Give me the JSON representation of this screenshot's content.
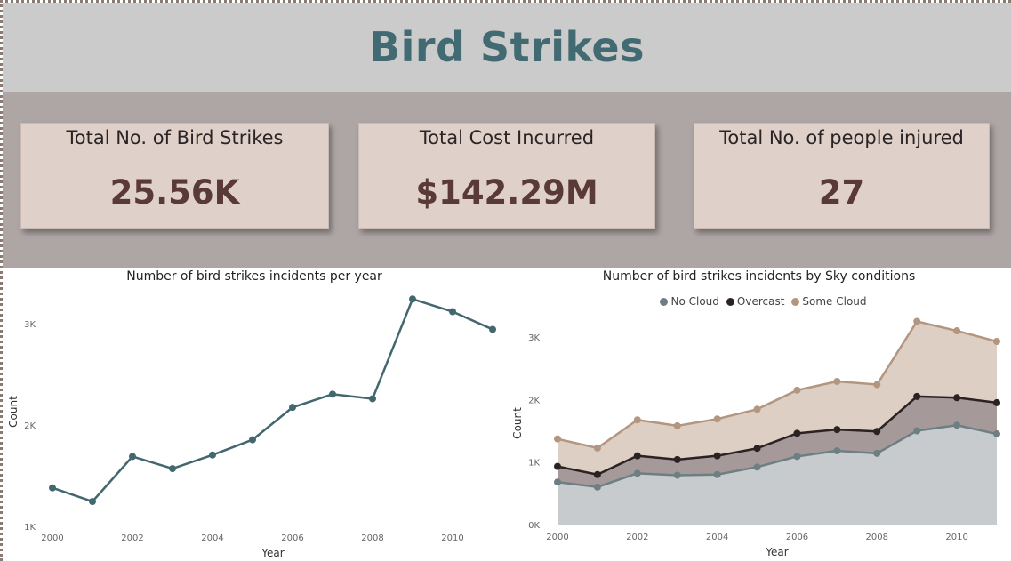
{
  "header": {
    "title": "Bird Strikes"
  },
  "kpis": [
    {
      "label": "Total No. of Bird Strikes",
      "value": "25.56K"
    },
    {
      "label": "Total Cost Incurred",
      "value": "$142.29M"
    },
    {
      "label": "Total No. of people injured",
      "value": "27"
    }
  ],
  "colors": {
    "header_bg": "#cbcbcb",
    "title": "#426a72",
    "kpi_band": "#aea6a5",
    "card_bg": "#dfd1c9",
    "kpi_value": "#5a3a36",
    "line": "#43676f",
    "no_cloud": "#6e7f83",
    "overcast": "#2b2222",
    "some_cloud": "#b39680"
  },
  "chart_data": [
    {
      "type": "line",
      "title": "Number of bird strikes incidents per year",
      "xlabel": "Year",
      "ylabel": "Count",
      "x": [
        2000,
        2001,
        2002,
        2003,
        2004,
        2005,
        2006,
        2007,
        2008,
        2009,
        2010,
        2011
      ],
      "series": [
        {
          "values": [
            1380,
            1245,
            1690,
            1570,
            1705,
            1855,
            2175,
            2305,
            2260,
            3245,
            3120,
            2945
          ]
        }
      ],
      "xticks": [
        "2000",
        "2002",
        "2004",
        "2006",
        "2008",
        "2010"
      ],
      "yticks": [
        "1K",
        "2K",
        "3K"
      ],
      "xlim": [
        2000,
        2011
      ],
      "ylim": [
        1000,
        3300
      ],
      "grid": false
    },
    {
      "type": "area",
      "stacked": true,
      "title": "Number of bird strikes incidents by Sky conditions",
      "xlabel": "Year",
      "ylabel": "Count",
      "x": [
        2000,
        2001,
        2002,
        2003,
        2004,
        2005,
        2006,
        2007,
        2008,
        2009,
        2010,
        2011
      ],
      "series": [
        {
          "name": "No Cloud",
          "values": [
            680,
            600,
            820,
            790,
            800,
            920,
            1090,
            1180,
            1140,
            1500,
            1590,
            1450
          ]
        },
        {
          "name": "Overcast",
          "values": [
            250,
            200,
            280,
            250,
            300,
            300,
            370,
            340,
            350,
            550,
            440,
            500
          ]
        },
        {
          "name": "Some Cloud",
          "values": [
            440,
            425,
            575,
            540,
            590,
            625,
            690,
            770,
            750,
            1200,
            1070,
            980
          ]
        }
      ],
      "xticks": [
        "2000",
        "2002",
        "2004",
        "2006",
        "2008",
        "2010"
      ],
      "yticks": [
        "0K",
        "1K",
        "2K",
        "3K"
      ],
      "xlim": [
        2000,
        2011
      ],
      "ylim": [
        0,
        3300
      ],
      "legend": "top-center",
      "grid": false
    }
  ]
}
